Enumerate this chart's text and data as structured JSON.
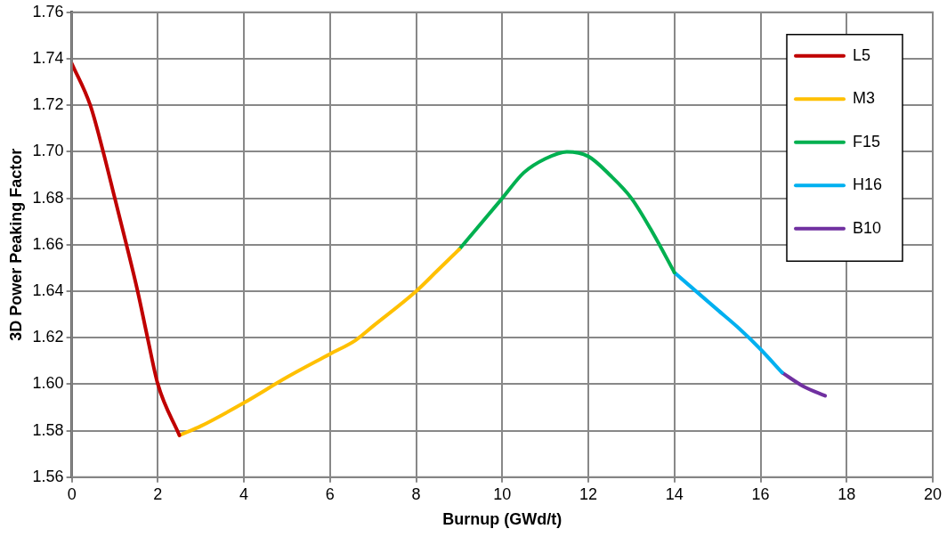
{
  "chart_data": {
    "type": "line",
    "xlabel": "Burnup (GWd/t)",
    "ylabel": "3D Power Peaking Factor",
    "xlim": [
      0,
      20
    ],
    "xticks": [
      0,
      2,
      4,
      6,
      8,
      10,
      12,
      14,
      16,
      18,
      20
    ],
    "ylim": [
      1.56,
      1.76
    ],
    "yticks": [
      1.56,
      1.58,
      {
        "value": 1.6,
        "label": "1.60"
      },
      1.62,
      1.64,
      1.66,
      1.68,
      {
        "value": 1.7,
        "label": "1.70"
      },
      1.72,
      1.74,
      1.76
    ],
    "grid": true,
    "legend": "top right",
    "marker": "none",
    "line_style": "solid",
    "series": [
      {
        "name": "L5",
        "color": "#c00000",
        "x": [
          0,
          0.43,
          0.73,
          1.0,
          1.27,
          1.53,
          1.76,
          2.0,
          2.5
        ],
        "values": [
          1.738,
          1.72,
          1.7,
          1.68,
          1.66,
          1.64,
          1.62,
          1.6,
          1.578
        ]
      },
      {
        "name": "M3",
        "color": "#ffc000",
        "x": [
          2.5,
          3,
          4,
          5,
          6,
          6.6,
          7,
          8,
          8.5,
          9
        ],
        "values": [
          1.578,
          1.582,
          1.592,
          1.603,
          1.613,
          1.619,
          1.625,
          1.64,
          1.649,
          1.658
        ]
      },
      {
        "name": "F15",
        "color": "#00b050",
        "x": [
          9,
          10,
          10.5,
          11,
          11.5,
          12,
          12.5,
          13,
          13.5,
          14
        ],
        "values": [
          1.658,
          1.68,
          1.691,
          1.697,
          1.7,
          1.698,
          1.69,
          1.68,
          1.665,
          1.648
        ]
      },
      {
        "name": "H16",
        "color": "#00b0f0",
        "x": [
          14,
          15,
          15.5,
          16,
          16.5
        ],
        "values": [
          1.648,
          1.632,
          1.624,
          1.615,
          1.605
        ]
      },
      {
        "name": "B10",
        "color": "#7030a0",
        "x": [
          16.5,
          17,
          17.5
        ],
        "values": [
          1.605,
          1.599,
          1.595
        ]
      }
    ]
  }
}
